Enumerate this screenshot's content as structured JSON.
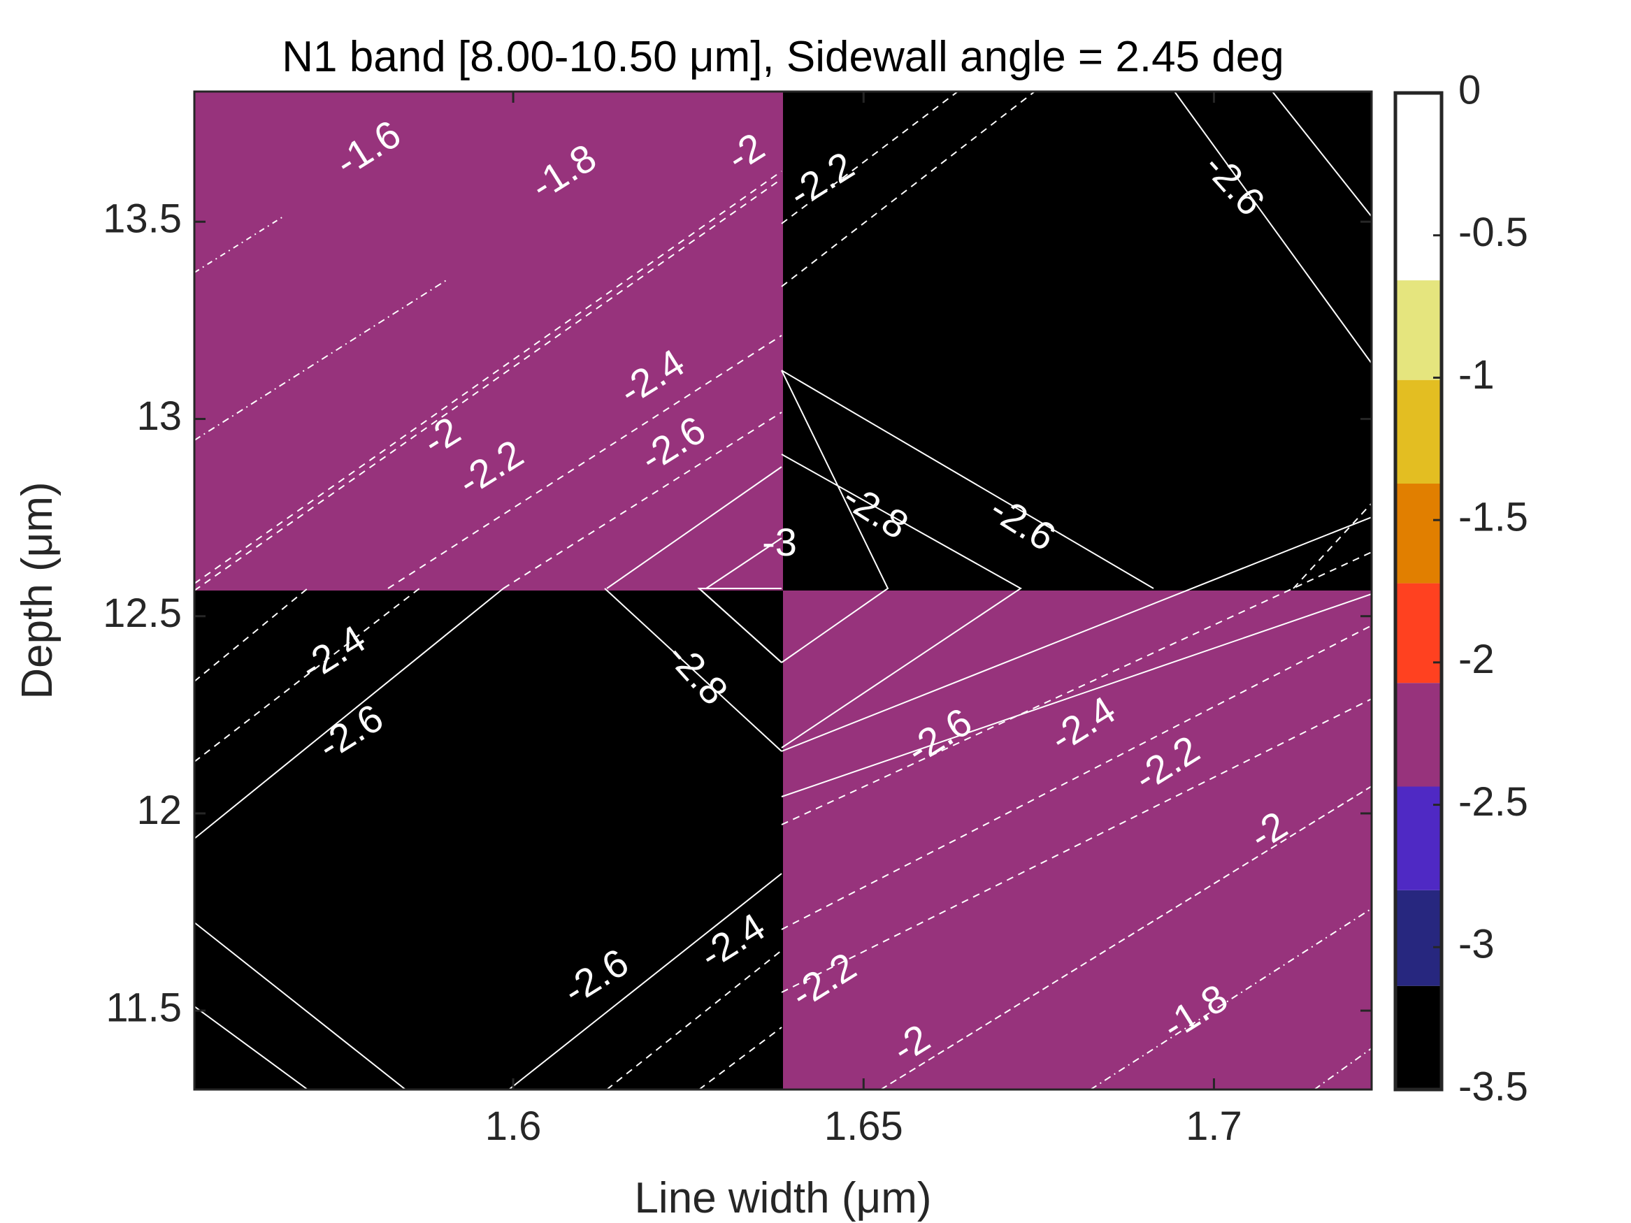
{
  "chart_data": {
    "type": "heatmap",
    "title": "N1 band [8.00-10.50 μm], Sidewall angle = 2.45 deg",
    "xlabel": "Line width (μm)",
    "ylabel": "Depth (μm)",
    "xlim": [
      1.5545,
      1.7225
    ],
    "ylim": [
      11.3,
      13.83
    ],
    "xticks": [
      {
        "value": 1.6,
        "label": "1.6"
      },
      {
        "value": 1.65,
        "label": "1.65"
      },
      {
        "value": 1.7,
        "label": "1.7"
      }
    ],
    "yticks": [
      {
        "value": 11.5,
        "label": "11.5"
      },
      {
        "value": 12,
        "label": "12"
      },
      {
        "value": 12.5,
        "label": "12.5"
      },
      {
        "value": 13,
        "label": "13"
      },
      {
        "value": 13.5,
        "label": "13.5"
      }
    ],
    "grid": {
      "x_edges": [
        1.5545,
        1.6385,
        1.7225
      ],
      "y_edges": [
        11.3,
        12.565,
        13.83
      ],
      "cell_values": [
        [
          -3.2,
          -2.2
        ],
        [
          -2.2,
          -3.2
        ]
      ],
      "cell_values_note_rows": "bottom-to-top"
    },
    "colorbar": {
      "limits": [
        -3.5,
        0
      ],
      "levels": [
        {
          "from": -3.5,
          "to": -3.136,
          "color": "#000000"
        },
        {
          "from": -3.136,
          "to": -2.8,
          "color": "#27277f"
        },
        {
          "from": -2.8,
          "to": -2.436,
          "color": "#4f29c4"
        },
        {
          "from": -2.436,
          "to": -2.072,
          "color": "#97337c"
        },
        {
          "from": -2.072,
          "to": -1.722,
          "color": "#ff4120"
        },
        {
          "from": -1.722,
          "to": -1.372,
          "color": "#e17f00"
        },
        {
          "from": -1.372,
          "to": -1.008,
          "color": "#e3be22"
        },
        {
          "from": -1.008,
          "to": -0.658,
          "color": "#e5e57e"
        },
        {
          "from": -0.658,
          "to": 0,
          "color": "#ffffff"
        }
      ],
      "ticks": [
        {
          "value": 0,
          "label": "0"
        },
        {
          "value": -0.5,
          "label": "-0.5"
        },
        {
          "value": -1,
          "label": "-1"
        },
        {
          "value": -1.5,
          "label": "-1.5"
        },
        {
          "value": -2,
          "label": "-2"
        },
        {
          "value": -2.5,
          "label": "-2.5"
        },
        {
          "value": -3,
          "label": "-3"
        },
        {
          "value": -3.5,
          "label": "-3.5"
        }
      ]
    },
    "contour_labels": [
      {
        "text": "-1.6",
        "x": 1.5795,
        "y": 13.68,
        "angle": -32
      },
      {
        "text": "-1.8",
        "x": 1.6074,
        "y": 13.62,
        "angle": -32
      },
      {
        "text": "-2",
        "x": 1.6334,
        "y": 13.67,
        "angle": -32
      },
      {
        "text": "-2.2",
        "x": 1.6442,
        "y": 13.6,
        "angle": -32
      },
      {
        "text": "-2.6",
        "x": 1.7026,
        "y": 13.59,
        "angle": 48
      },
      {
        "text": "-2",
        "x": 1.59,
        "y": 12.95,
        "angle": -32
      },
      {
        "text": "-2.2",
        "x": 1.597,
        "y": 12.87,
        "angle": -32
      },
      {
        "text": "-2.4",
        "x": 1.62,
        "y": 13.1,
        "angle": -32
      },
      {
        "text": "-2.6",
        "x": 1.623,
        "y": 12.93,
        "angle": -32
      },
      {
        "text": "-3",
        "x": 1.638,
        "y": 12.68,
        "angle": 0
      },
      {
        "text": "-2.8",
        "x": 1.6515,
        "y": 12.76,
        "angle": 32
      },
      {
        "text": "-2.6",
        "x": 1.6725,
        "y": 12.73,
        "angle": 32
      },
      {
        "text": "-2.4",
        "x": 1.5745,
        "y": 12.4,
        "angle": -32
      },
      {
        "text": "-2.6",
        "x": 1.577,
        "y": 12.2,
        "angle": -32
      },
      {
        "text": "-2.8",
        "x": 1.626,
        "y": 12.35,
        "angle": 48
      },
      {
        "text": "-2.6",
        "x": 1.661,
        "y": 12.19,
        "angle": -32
      },
      {
        "text": "-2.4",
        "x": 1.6815,
        "y": 12.22,
        "angle": -32
      },
      {
        "text": "-2.2",
        "x": 1.6935,
        "y": 12.12,
        "angle": -32
      },
      {
        "text": "-2",
        "x": 1.708,
        "y": 11.95,
        "angle": -32
      },
      {
        "text": "-2.6",
        "x": 1.612,
        "y": 11.58,
        "angle": -32
      },
      {
        "text": "-2.4",
        "x": 1.6315,
        "y": 11.67,
        "angle": -32
      },
      {
        "text": "-2.2",
        "x": 1.6445,
        "y": 11.57,
        "angle": -32
      },
      {
        "text": "-2",
        "x": 1.657,
        "y": 11.41,
        "angle": -32
      },
      {
        "text": "-1.8",
        "x": 1.6975,
        "y": 11.49,
        "angle": -32
      }
    ]
  }
}
